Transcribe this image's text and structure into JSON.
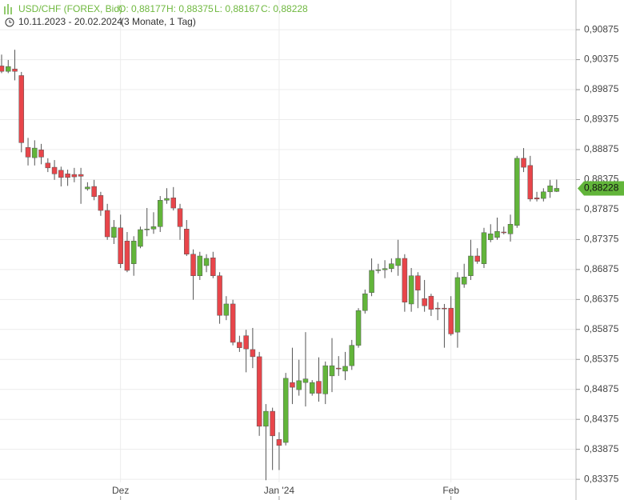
{
  "chart_data": {
    "type": "candlestick",
    "title": "USD/CHF (FOREX, Bid)",
    "ohlc_labels": [
      "O: 0,88177",
      "H: 0,88375",
      "L: 0,88167",
      "C: 0,88228"
    ],
    "subtitle": "10.11.2023 - 20.02.2024",
    "period": "(3 Monate, 1 Tag)",
    "up_color": "#62b53a",
    "down_color": "#e8454a",
    "wick_color": "#555555",
    "grid": true,
    "last_price": {
      "value": 0.88228,
      "label": "0,88228"
    },
    "categories": [
      null,
      null,
      null,
      null,
      null,
      null,
      null,
      null,
      null,
      null,
      null,
      null,
      null,
      null,
      null,
      null,
      null,
      null,
      "Dez",
      null,
      null,
      null,
      null,
      null,
      null,
      null,
      null,
      null,
      null,
      null,
      null,
      null,
      null,
      null,
      null,
      null,
      null,
      null,
      null,
      null,
      null,
      null,
      "Jan '24",
      null,
      null,
      null,
      null,
      null,
      null,
      null,
      null,
      null,
      null,
      null,
      null,
      null,
      null,
      null,
      null,
      null,
      null,
      null,
      null,
      null,
      null,
      null,
      null,
      null,
      "Feb",
      null,
      null,
      null,
      null,
      null,
      null,
      null,
      null,
      null,
      null,
      null,
      null,
      null,
      null,
      null,
      null
    ],
    "open": [
      0.9027,
      0.9018,
      0.9022,
      0.9011,
      0.8891,
      0.8874,
      0.8887,
      0.8865,
      0.8858,
      0.8853,
      0.8847,
      0.8846,
      0.8846,
      0.8822,
      0.8826,
      0.8811,
      0.8786,
      0.8741,
      0.8757,
      0.8735,
      0.8697,
      0.8726,
      0.8754,
      0.8755,
      0.8759,
      0.8803,
      0.8807,
      0.8789,
      0.8755,
      0.8713,
      0.8677,
      0.8694,
      0.8707,
      0.8677,
      0.8611,
      0.863,
      0.8566,
      0.8577,
      0.8554,
      0.8542,
      0.8426,
      0.8451,
      0.8404,
      0.8399,
      0.8499,
      0.8487,
      0.8499,
      0.8481,
      0.8501,
      0.848,
      0.851,
      0.8523,
      0.8518,
      0.8527,
      0.8561,
      0.8619,
      0.8649,
      0.8686,
      0.8687,
      0.8689,
      0.8694,
      0.8706,
      0.863,
      0.8677,
      0.8639,
      0.8643,
      0.8623,
      0.8623,
      0.8623,
      0.8583,
      0.8663,
      0.8677,
      0.871,
      0.8697,
      0.8737,
      0.8741,
      0.875,
      0.8747,
      0.8761,
      0.8873,
      0.8861,
      0.8807,
      0.8806,
      0.8817,
      0.88177
    ],
    "high": [
      0.9046,
      0.9037,
      0.9054,
      0.9017,
      0.8907,
      0.8903,
      0.8897,
      0.8873,
      0.887,
      0.8859,
      0.8854,
      0.8857,
      0.8857,
      0.8833,
      0.8837,
      0.8817,
      0.8797,
      0.877,
      0.8779,
      0.875,
      0.8743,
      0.8759,
      0.879,
      0.8783,
      0.881,
      0.8823,
      0.8825,
      0.8797,
      0.877,
      0.8721,
      0.8717,
      0.8713,
      0.8717,
      0.8683,
      0.8643,
      0.8637,
      0.8577,
      0.8587,
      0.859,
      0.855,
      0.8463,
      0.8457,
      0.8416,
      0.8515,
      0.8557,
      0.8537,
      0.8583,
      0.8503,
      0.8541,
      0.8534,
      0.8573,
      0.8543,
      0.855,
      0.857,
      0.8623,
      0.8654,
      0.8706,
      0.8697,
      0.8703,
      0.8706,
      0.8737,
      0.8713,
      0.869,
      0.8683,
      0.867,
      0.8647,
      0.8633,
      0.863,
      0.8643,
      0.8683,
      0.8697,
      0.8737,
      0.8723,
      0.8757,
      0.8763,
      0.8774,
      0.8759,
      0.8779,
      0.8877,
      0.889,
      0.8877,
      0.8817,
      0.8823,
      0.8837,
      0.88375
    ],
    "low": [
      0.9015,
      0.9015,
      0.9003,
      0.8883,
      0.8861,
      0.8861,
      0.8863,
      0.885,
      0.8837,
      0.8826,
      0.8827,
      0.8833,
      0.8797,
      0.8819,
      0.8803,
      0.8777,
      0.8737,
      0.873,
      0.869,
      0.8683,
      0.8677,
      0.8723,
      0.8743,
      0.8747,
      0.875,
      0.8797,
      0.8786,
      0.8737,
      0.871,
      0.8637,
      0.867,
      0.8683,
      0.8673,
      0.8597,
      0.8603,
      0.8561,
      0.855,
      0.8516,
      0.8523,
      0.841,
      0.8336,
      0.8353,
      0.8353,
      0.8394,
      0.8463,
      0.8477,
      0.8459,
      0.8477,
      0.8467,
      0.8463,
      0.8483,
      0.851,
      0.8503,
      0.852,
      0.8557,
      0.8614,
      0.8643,
      0.8681,
      0.8673,
      0.8683,
      0.8677,
      0.8617,
      0.8617,
      0.8623,
      0.8617,
      0.861,
      0.8603,
      0.8557,
      0.8577,
      0.8557,
      0.8657,
      0.867,
      0.8697,
      0.869,
      0.8733,
      0.8737,
      0.8746,
      0.8734,
      0.8757,
      0.885,
      0.8801,
      0.8801,
      0.8801,
      0.8807,
      0.88167
    ],
    "close": [
      0.9018,
      0.9026,
      0.9018,
      0.8899,
      0.8875,
      0.889,
      0.8875,
      0.8857,
      0.8847,
      0.8841,
      0.8841,
      0.8842,
      0.8843,
      0.8825,
      0.8809,
      0.8786,
      0.8742,
      0.8758,
      0.8697,
      0.8686,
      0.8735,
      0.8754,
      0.8755,
      0.8759,
      0.8803,
      0.8806,
      0.879,
      0.8759,
      0.8713,
      0.8677,
      0.871,
      0.8706,
      0.8677,
      0.8611,
      0.863,
      0.8566,
      0.8557,
      0.8555,
      0.8542,
      0.8426,
      0.8451,
      0.841,
      0.8394,
      0.8506,
      0.8491,
      0.8502,
      0.8505,
      0.8499,
      0.8481,
      0.8527,
      0.8527,
      0.8523,
      0.8526,
      0.8561,
      0.8619,
      0.8647,
      0.8686,
      0.8687,
      0.8689,
      0.8697,
      0.8706,
      0.8633,
      0.8677,
      0.8653,
      0.8627,
      0.8621,
      0.8623,
      0.8623,
      0.858,
      0.8674,
      0.8675,
      0.871,
      0.8701,
      0.8749,
      0.8747,
      0.8751,
      0.875,
      0.8763,
      0.8873,
      0.8858,
      0.8805,
      0.8805,
      0.8817,
      0.8827,
      0.88228
    ],
    "ylim": [
      0.8303,
      0.9137
    ],
    "yticks": [
      {
        "value": 0.83375,
        "label": "0,83375"
      },
      {
        "value": 0.83875,
        "label": "0,83875"
      },
      {
        "value": 0.84375,
        "label": "0,84375"
      },
      {
        "value": 0.84875,
        "label": "0,84875"
      },
      {
        "value": 0.85375,
        "label": "0,85375"
      },
      {
        "value": 0.85875,
        "label": "0,85875"
      },
      {
        "value": 0.86375,
        "label": "0,86375"
      },
      {
        "value": 0.86875,
        "label": "0,86875"
      },
      {
        "value": 0.87375,
        "label": "0,87375"
      },
      {
        "value": 0.87875,
        "label": "0,87875"
      },
      {
        "value": 0.88375,
        "label": "0,88375"
      },
      {
        "value": 0.88875,
        "label": "0,88875"
      },
      {
        "value": 0.89375,
        "label": "0,89375"
      },
      {
        "value": 0.89875,
        "label": "0,89875"
      },
      {
        "value": 0.90375,
        "label": "0,90375"
      },
      {
        "value": 0.90875,
        "label": "0,90875"
      }
    ]
  }
}
